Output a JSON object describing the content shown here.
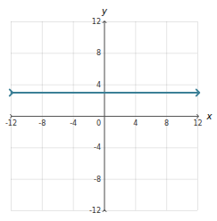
{
  "chart_data": {
    "type": "line",
    "xlabel": "x",
    "ylabel": "y",
    "xlim": [
      -12,
      12
    ],
    "ylim": [
      -12,
      12
    ],
    "xticks": [
      -12,
      -8,
      -4,
      0,
      4,
      8,
      12
    ],
    "yticks": [
      -12,
      -8,
      -4,
      0,
      4,
      8,
      12
    ],
    "grid": true,
    "series": [
      {
        "x": [
          -12,
          12
        ],
        "values": [
          3,
          3
        ],
        "color": "#3a7f96",
        "marker": "arrow"
      }
    ]
  }
}
